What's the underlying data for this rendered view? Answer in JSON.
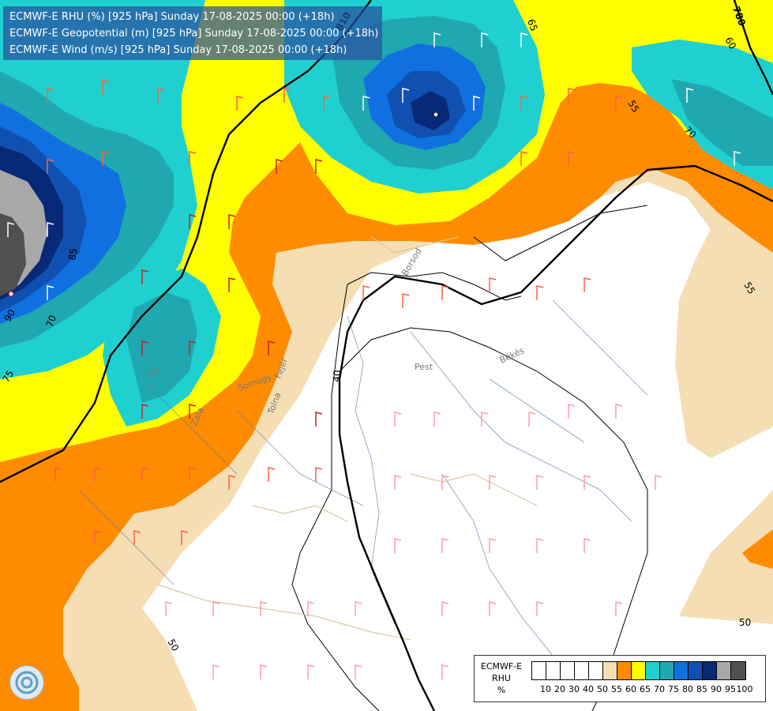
{
  "header": {
    "line1": "ECMWF-E RHU (%) [925 hPa] Sunday 17-08-2025 00:00 (+18h)",
    "line2": "ECMWF-E Geopotential (m) [925 hPa] Sunday 17-08-2025 00:00 (+18h)",
    "line3": "ECMWF-E Wind (m/s) [925 hPa] Sunday 17-08-2025 00:00 (+18h)"
  },
  "legend": {
    "model": "ECMWF-E",
    "variable": "RHU",
    "unit": "%",
    "ticks": [
      "10",
      "20",
      "30",
      "40",
      "50",
      "55",
      "60",
      "65",
      "70",
      "75",
      "80",
      "85",
      "90",
      "95",
      "100"
    ],
    "colors": [
      "#ffffff",
      "#ffffff",
      "#ffffff",
      "#ffffff",
      "#ffffff",
      "#f5deb3",
      "#ff8c00",
      "#ffff00",
      "#20d0d0",
      "#20a8b0",
      "#1070e0",
      "#1050b0",
      "#082878",
      "#a8a8a8",
      "#505050"
    ]
  },
  "contour_labels": {
    "rhu_65": "65",
    "rhu_55_a": "55",
    "rhu_55_b": "55",
    "rhu_70": "70",
    "rhu_85": "85",
    "rhu_90": "90",
    "rhu_70_b": "70",
    "rhu_75": "75",
    "rhu_50_a": "50",
    "rhu_50_b": "50",
    "rhu_60": "60",
    "rhu_40": "40",
    "geo_780": "780",
    "geo_810": "810"
  },
  "place_labels": {
    "pest": "Pest",
    "bekes": "Békés",
    "borsod": "Borsod",
    "zala": "Zala",
    "somogy": "Somogy",
    "tolna": "Tolna",
    "fejer": "Fejér",
    "vas": "Vas"
  },
  "colors": {
    "rhu_50_55": "#f5deb3",
    "rhu_55_60": "#ff8c00",
    "rhu_60_65": "#ffff00",
    "rhu_65_70": "#20d0d0",
    "rhu_70_75": "#20a8b0",
    "rhu_75_80": "#1070e0",
    "rhu_80_85": "#1050b0",
    "rhu_85_90": "#082878",
    "rhu_90_95": "#a8a8a8",
    "rhu_95_100": "#505050"
  }
}
